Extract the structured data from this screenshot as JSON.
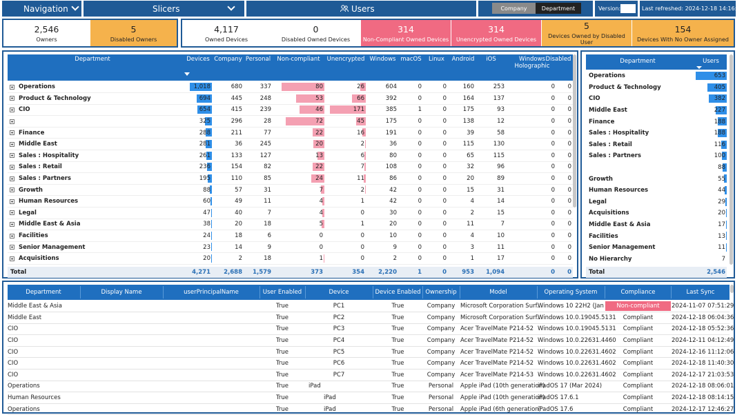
{
  "topbar": {
    "navigation": "Navigation",
    "slicers": "Slicers",
    "title": "Users",
    "toggle_company": "Company",
    "toggle_department": "Department",
    "version_label": "Version:",
    "last_refreshed": "Last refreshed: 2024-12-18 14:16:50",
    "user_icon": "users-icon"
  },
  "kpis": [
    {
      "value": "2,546",
      "label": "Owners",
      "bg": "#ffffff",
      "fg": "#222222"
    },
    {
      "value": "5",
      "label": "Disabled Owners",
      "bg": "#f5b24c",
      "fg": "#222222"
    },
    {
      "value": "4,117",
      "label": "Owned Devices",
      "bg": "#ffffff",
      "fg": "#222222"
    },
    {
      "value": "0",
      "label": "Disabled Owned Devices",
      "bg": "#ffffff",
      "fg": "#222222"
    },
    {
      "value": "314",
      "label": "Non-Compliant Owned Devices",
      "bg": "#f06a82",
      "fg": "#ffffff"
    },
    {
      "value": "314",
      "label": "Unencrypted Owned Devices",
      "bg": "#f06a82",
      "fg": "#ffffff"
    },
    {
      "value": "5",
      "label": "Devices Owned by Disabled User",
      "bg": "#f5b24c",
      "fg": "#222222"
    },
    {
      "value": "154",
      "label": "Devices With No Owner Assigned",
      "bg": "#f5b24c",
      "fg": "#222222"
    }
  ],
  "device_table": {
    "columns": [
      "Department",
      "Devices",
      "Company",
      "Personal",
      "Non-compliant",
      "Unencrypted",
      "Windows",
      "macOS",
      "Linux",
      "Android",
      "iOS",
      "Windows Holographic",
      "Disabled"
    ],
    "rows": [
      [
        "Operations",
        "1,018",
        "680",
        "337",
        "80",
        "26",
        "604",
        "0",
        "0",
        "160",
        "253",
        "0",
        "0"
      ],
      [
        "Product & Technology",
        "694",
        "445",
        "248",
        "53",
        "66",
        "392",
        "0",
        "0",
        "164",
        "137",
        "0",
        "0"
      ],
      [
        "CIO",
        "654",
        "415",
        "239",
        "46",
        "171",
        "385",
        "1",
        "0",
        "175",
        "93",
        "0",
        "0"
      ],
      [
        "",
        "325",
        "296",
        "28",
        "72",
        "45",
        "175",
        "0",
        "0",
        "138",
        "12",
        "0",
        "0"
      ],
      [
        "Finance",
        "288",
        "211",
        "77",
        "22",
        "16",
        "191",
        "0",
        "0",
        "39",
        "58",
        "0",
        "0"
      ],
      [
        "Middle East",
        "281",
        "36",
        "245",
        "20",
        "2",
        "36",
        "0",
        "0",
        "115",
        "130",
        "0",
        "0"
      ],
      [
        "Sales : Hospitality",
        "261",
        "133",
        "127",
        "13",
        "6",
        "80",
        "0",
        "0",
        "65",
        "115",
        "0",
        "0"
      ],
      [
        "Sales : Retail",
        "236",
        "154",
        "82",
        "22",
        "7",
        "108",
        "0",
        "0",
        "32",
        "96",
        "0",
        "0"
      ],
      [
        "Sales : Partners",
        "195",
        "110",
        "85",
        "24",
        "11",
        "86",
        "0",
        "0",
        "20",
        "89",
        "0",
        "0"
      ],
      [
        "Growth",
        "88",
        "57",
        "31",
        "7",
        "2",
        "42",
        "0",
        "0",
        "15",
        "31",
        "0",
        "0"
      ],
      [
        "Human Resources",
        "60",
        "49",
        "11",
        "4",
        "1",
        "42",
        "0",
        "0",
        "4",
        "14",
        "0",
        "0"
      ],
      [
        "Legal",
        "47",
        "40",
        "7",
        "4",
        "0",
        "30",
        "0",
        "0",
        "2",
        "15",
        "0",
        "0"
      ],
      [
        "Middle East & Asia",
        "38",
        "20",
        "18",
        "5",
        "1",
        "20",
        "0",
        "0",
        "11",
        "7",
        "0",
        "0"
      ],
      [
        "Facilities",
        "24",
        "18",
        "6",
        "0",
        "0",
        "10",
        "0",
        "0",
        "4",
        "10",
        "0",
        "0"
      ],
      [
        "Senior Management",
        "23",
        "14",
        "9",
        "0",
        "0",
        "9",
        "0",
        "0",
        "3",
        "11",
        "0",
        "0"
      ],
      [
        "Acquisitions",
        "20",
        "2",
        "18",
        "1",
        "0",
        "2",
        "0",
        "0",
        "1",
        "17",
        "0",
        "0"
      ]
    ],
    "devices_raw": [
      1018,
      694,
      654,
      325,
      288,
      281,
      261,
      236,
      195,
      88,
      60,
      47,
      38,
      24,
      23,
      20
    ],
    "noncomp_raw": [
      80,
      53,
      46,
      72,
      22,
      20,
      13,
      22,
      24,
      7,
      4,
      4,
      5,
      0,
      0,
      1
    ],
    "unenc_raw": [
      26,
      66,
      171,
      45,
      16,
      2,
      6,
      7,
      11,
      2,
      1,
      0,
      1,
      0,
      0,
      0
    ],
    "total": [
      "Total",
      "4,271",
      "2,688",
      "1,579",
      "373",
      "354",
      "2,220",
      "1",
      "0",
      "953",
      "1,094",
      "0",
      "0"
    ]
  },
  "users_table": {
    "columns": [
      "Department",
      "Users"
    ],
    "rows": [
      [
        "Operations",
        "653"
      ],
      [
        "Product & Technology",
        "405"
      ],
      [
        "CIO",
        "382"
      ],
      [
        "Middle East",
        "227"
      ],
      [
        "Finance",
        "188"
      ],
      [
        "Sales : Hospitality",
        "188"
      ],
      [
        "Sales : Retail",
        "116"
      ],
      [
        "Sales : Partners",
        "100"
      ],
      [
        "",
        "88"
      ],
      [
        "Growth",
        "55"
      ],
      [
        "Human Resources",
        "44"
      ],
      [
        "Legal",
        "29"
      ],
      [
        "Acquisitions",
        "20"
      ],
      [
        "Middle East & Asia",
        "17"
      ],
      [
        "Facilities",
        "13"
      ],
      [
        "Senior Management",
        "11"
      ],
      [
        "No Hierarchy",
        "7"
      ]
    ],
    "users_raw": [
      653,
      405,
      382,
      227,
      188,
      188,
      116,
      100,
      88,
      55,
      44,
      29,
      20,
      17,
      13,
      11,
      7
    ],
    "total": [
      "Total",
      "2,546"
    ]
  },
  "detail_table": {
    "columns": [
      "Department",
      "Display Name",
      "userPrincipalName",
      "User Enabled",
      "Device",
      "Device Enabled",
      "Ownership",
      "Model",
      "Operating System",
      "Compliance",
      "Last Sync"
    ],
    "rows": [
      [
        "Middle East & Asia",
        "",
        "",
        "True",
        "PC1",
        "True",
        "Company",
        "Microsoft Corporation Surf...",
        "Windows 10 22H2 (Jan 2...",
        "Non-compliant",
        "2024-11-07 07:51:29"
      ],
      [
        "Middle East",
        "",
        "",
        "True",
        "PC2",
        "True",
        "Company",
        "Microsoft Corporation Surf...",
        "Windows 10.0.19045.5131",
        "Compliant",
        "2024-12-18 06:04:36"
      ],
      [
        "CIO",
        "",
        "",
        "True",
        "PC3",
        "True",
        "Company",
        "Acer TravelMate P214-52",
        "Windows 10.0.19045.5131",
        "Compliant",
        "2024-12-18 05:52:36"
      ],
      [
        "CIO",
        "",
        "",
        "True",
        "PC4",
        "True",
        "Company",
        "Acer TravelMate P214-52",
        "Windows 10.0.22631.4460",
        "Compliant",
        "2024-12-11 04:12:49"
      ],
      [
        "CIO",
        "",
        "",
        "True",
        "PC5",
        "True",
        "Company",
        "Acer TravelMate P214-52",
        "Windows 10.0.22631.4602",
        "Compliant",
        "2024-12-16 11:12:06"
      ],
      [
        "CIO",
        "",
        "",
        "True",
        "PC6",
        "True",
        "Company",
        "Acer TravelMate P214-52",
        "Windows 10.0.22631.4602",
        "Compliant",
        "2024-12-18 11:40:30"
      ],
      [
        "CIO",
        "",
        "",
        "True",
        "PC7",
        "True",
        "Company",
        "Acer TravelMate P214-53",
        "Windows 10.0.22631.4602",
        "Compliant",
        "2024-12-17 21:03:53"
      ],
      [
        "Operations",
        "",
        "",
        "True",
        "iPad",
        "True",
        "Personal",
        "Apple iPad (10th generation)",
        "iPadOS 17 (Mar 2024)",
        "Compliant",
        "2024-12-18 08:06:01"
      ],
      [
        "Human Resources",
        "",
        "",
        "True",
        "iPad",
        "True",
        "Personal",
        "Apple iPad (10th generation)",
        "iPadOS 17.6.1",
        "Compliant",
        "2024-12-18 08:14:15"
      ],
      [
        "Operations",
        "",
        "",
        "True",
        "iPad",
        "True",
        "Personal",
        "Apple iPad (6th generation)",
        "iPadOS 17.6",
        "Compliant",
        "2024-12-17 12:46:27"
      ]
    ]
  },
  "colors": {
    "navy": "#1f5a96",
    "header_blue": "#1f6fbf",
    "bar_blue": "#2f8fe8",
    "bar_pink": "#f4a0b2",
    "orange": "#f5b24c",
    "red": "#f06a82"
  }
}
